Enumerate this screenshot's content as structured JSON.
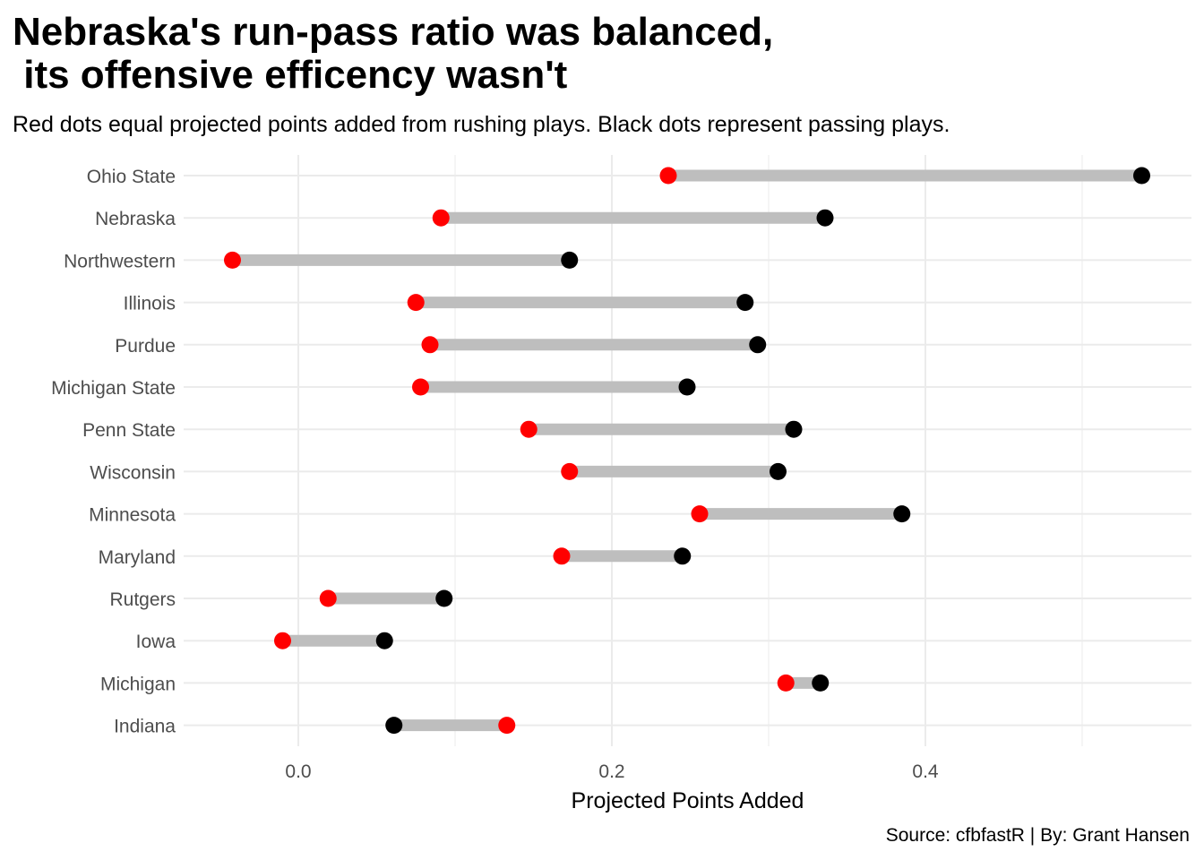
{
  "chart_data": {
    "type": "dumbbell",
    "title": "Nebraska's run-pass ratio was balanced,\n its offensive efficency wasn't",
    "subtitle": "Red dots equal projected points added from rushing plays. Black dots represent passing plays.",
    "caption": "Source: cfbfastR | By: Grant Hansen",
    "xlabel": "Projected Points Added",
    "ylabel": "",
    "xlim": [
      -0.073,
      0.57
    ],
    "xticks": [
      0.0,
      0.2,
      0.4
    ],
    "xtick_labels": [
      "0.0",
      "0.2",
      "0.4"
    ],
    "grid": true,
    "colors": {
      "rush": "#ff0000",
      "pass": "#000000",
      "segment": "#bebebe",
      "grid": "#ebebeb"
    },
    "series": [
      {
        "name": "Rushing",
        "color": "#ff0000"
      },
      {
        "name": "Passing",
        "color": "#000000"
      }
    ],
    "categories": [
      "Ohio State",
      "Nebraska",
      "Northwestern",
      "Illinois",
      "Purdue",
      "Michigan State",
      "Penn State",
      "Wisconsin",
      "Minnesota",
      "Maryland",
      "Rutgers",
      "Iowa",
      "Michigan",
      "Indiana"
    ],
    "rush": [
      0.236,
      0.091,
      -0.042,
      0.075,
      0.084,
      0.078,
      0.147,
      0.173,
      0.256,
      0.168,
      0.019,
      -0.01,
      0.311,
      0.133
    ],
    "pass": [
      0.538,
      0.336,
      0.173,
      0.285,
      0.293,
      0.248,
      0.316,
      0.306,
      0.385,
      0.245,
      0.093,
      0.055,
      0.333,
      0.061
    ]
  }
}
